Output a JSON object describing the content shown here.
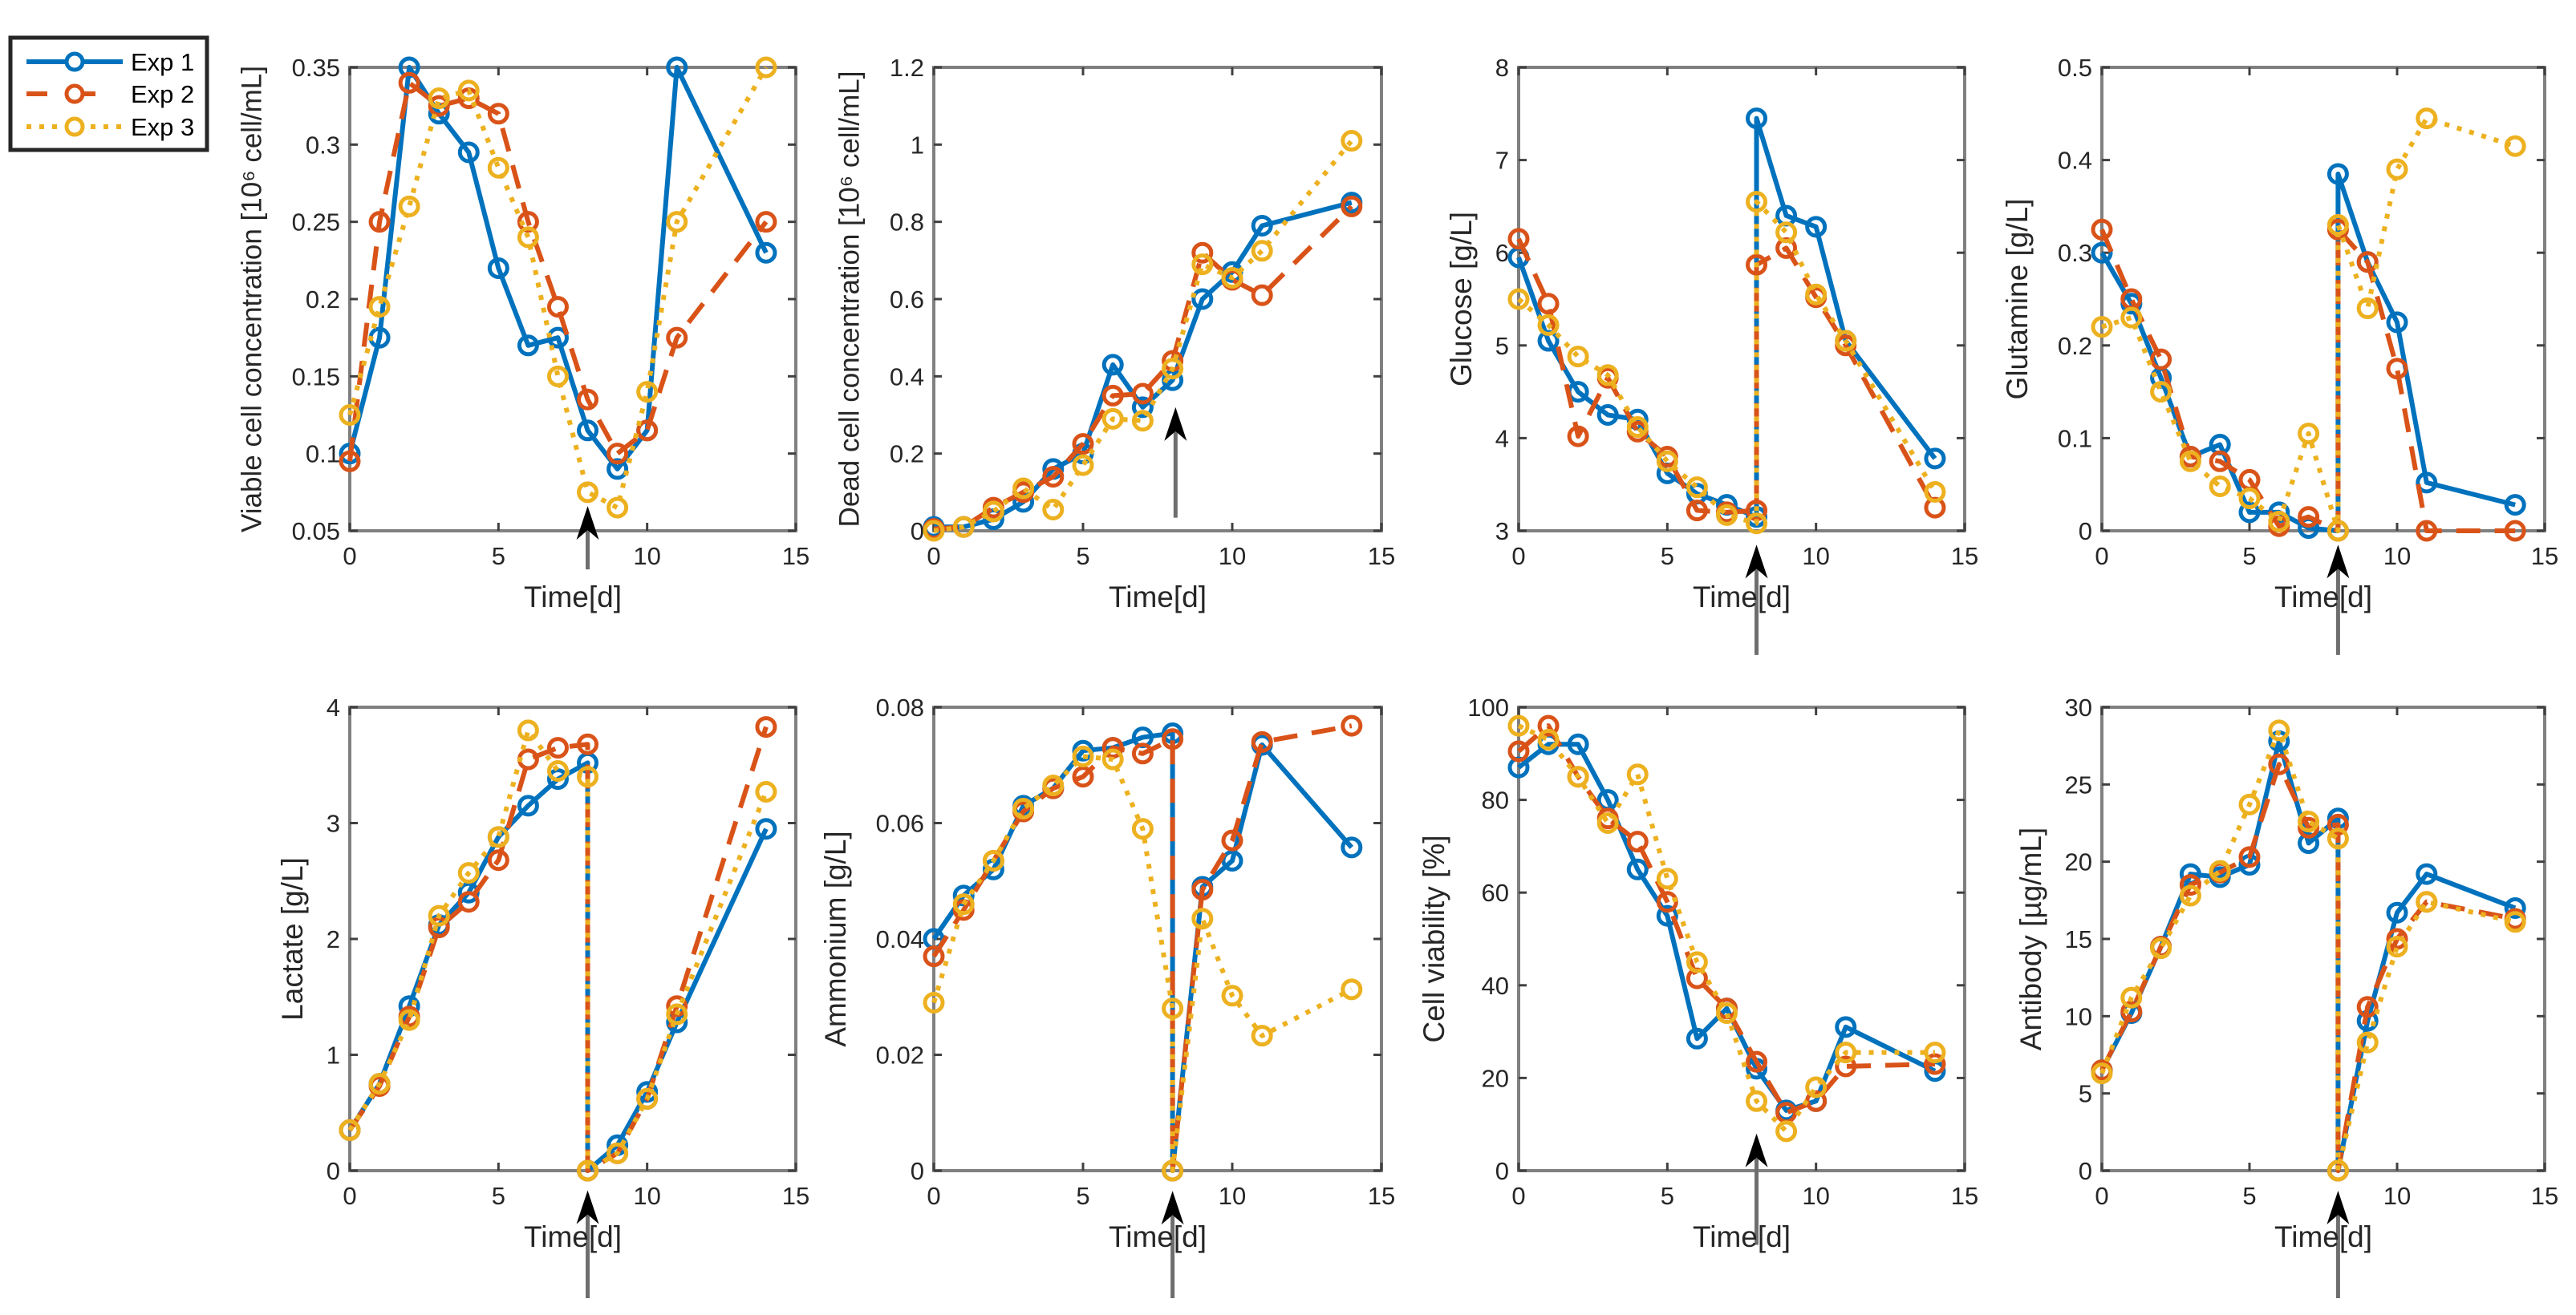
{
  "legend": {
    "entries": [
      {
        "name": "Exp 1",
        "color": "#0072BD",
        "style": "solid"
      },
      {
        "name": "Exp 2",
        "color": "#D95319",
        "style": "dashed"
      },
      {
        "name": "Exp 3",
        "color": "#EDB120",
        "style": "dotted"
      }
    ],
    "placement": "top-left"
  },
  "chart_data": [
    {
      "type": "line",
      "ylabel": "Viable cell concentration [10⁶ cell/mL]",
      "xlabel": "Time[d]",
      "xlim": [
        0,
        15
      ],
      "ylim": [
        0.05,
        0.35
      ],
      "xticks": [
        0,
        5,
        10,
        15
      ],
      "yticks": [
        0.05,
        0.1,
        0.15,
        0.2,
        0.25,
        0.3,
        0.35
      ],
      "x": [
        0,
        1,
        2,
        3,
        4,
        5,
        6,
        7,
        8,
        9,
        10,
        11,
        14
      ],
      "series": [
        {
          "name": "Exp 1",
          "values": [
            0.1,
            0.175,
            0.35,
            0.32,
            0.295,
            0.22,
            0.17,
            0.175,
            0.115,
            0.09,
            0.115,
            0.35,
            0.23
          ]
        },
        {
          "name": "Exp 2",
          "values": [
            0.095,
            0.25,
            0.34,
            0.325,
            0.33,
            0.32,
            0.25,
            0.195,
            0.135,
            0.1,
            0.115,
            0.175,
            0.25
          ]
        },
        {
          "name": "Exp 3",
          "values": [
            0.125,
            0.195,
            0.26,
            0.33,
            0.335,
            0.285,
            0.24,
            0.15,
            0.075,
            0.065,
            0.14,
            0.25,
            0.35
          ]
        }
      ],
      "arrow": {
        "x": 8,
        "tip_y": 0.066,
        "tail_y": 0.025
      }
    },
    {
      "type": "line",
      "ylabel": "Dead cell concentration [10⁶ cell/mL]",
      "xlabel": "Time[d]",
      "xlim": [
        0,
        15
      ],
      "ylim": [
        0,
        1.2
      ],
      "xticks": [
        0,
        5,
        10,
        15
      ],
      "yticks": [
        0,
        0.2,
        0.4,
        0.6,
        0.8,
        1,
        1.2
      ],
      "x": [
        0,
        1,
        2,
        3,
        4,
        5,
        6,
        7,
        8,
        9,
        10,
        11,
        14
      ],
      "series": [
        {
          "name": "Exp 1",
          "values": [
            0.01,
            0.01,
            0.03,
            0.075,
            0.16,
            0.2,
            0.43,
            0.32,
            0.39,
            0.6,
            0.67,
            0.79,
            0.85
          ]
        },
        {
          "name": "Exp 2",
          "values": [
            0.005,
            0.01,
            0.06,
            0.1,
            0.14,
            0.225,
            0.35,
            0.355,
            0.44,
            0.72,
            0.65,
            0.61,
            0.84
          ]
        },
        {
          "name": "Exp 3",
          "values": [
            0.0,
            0.01,
            0.05,
            0.11,
            0.055,
            0.17,
            0.29,
            0.285,
            0.42,
            0.69,
            0.655,
            0.725,
            1.01
          ]
        }
      ],
      "arrow": {
        "x": 8.1,
        "tip_y": 0.32,
        "tail_y": 0.034
      }
    },
    {
      "type": "line",
      "ylabel": "Glucose [g/L]",
      "xlabel": "Time[d]",
      "xlim": [
        0,
        15
      ],
      "ylim": [
        3,
        8
      ],
      "xticks": [
        0,
        5,
        10,
        15
      ],
      "yticks": [
        3,
        4,
        5,
        6,
        7,
        8
      ],
      "x": [
        0,
        1,
        2,
        3,
        4,
        5,
        6,
        7,
        8,
        8,
        9,
        10,
        11,
        14
      ],
      "series": [
        {
          "name": "Exp 1",
          "values": [
            5.95,
            5.05,
            4.5,
            4.25,
            4.2,
            3.62,
            3.4,
            3.28,
            3.15,
            7.45,
            6.4,
            6.28,
            5.05,
            3.78
          ]
        },
        {
          "name": "Exp 2",
          "values": [
            6.15,
            5.45,
            4.02,
            4.65,
            4.07,
            3.8,
            3.22,
            3.2,
            3.22,
            5.87,
            6.05,
            5.52,
            5.0,
            3.25
          ]
        },
        {
          "name": "Exp 3",
          "values": [
            5.5,
            5.22,
            4.88,
            4.68,
            4.12,
            3.75,
            3.47,
            3.17,
            3.08,
            6.55,
            6.22,
            5.55,
            5.05,
            3.42
          ]
        }
      ],
      "arrow": {
        "x": 8,
        "tip_y": 2.85,
        "tail_y": 1.66
      }
    },
    {
      "type": "line",
      "ylabel": "Glutamine [g/L]",
      "xlabel": "Time[d]",
      "xlim": [
        0,
        15
      ],
      "ylim": [
        0,
        0.5
      ],
      "xticks": [
        0,
        5,
        10,
        15
      ],
      "yticks": [
        0,
        0.1,
        0.2,
        0.3,
        0.4,
        0.5
      ],
      "x": [
        0,
        1,
        2,
        3,
        4,
        5,
        6,
        7,
        8,
        8,
        9,
        10,
        11,
        14
      ],
      "series": [
        {
          "name": "Exp 1",
          "values": [
            0.3,
            0.245,
            0.165,
            0.08,
            0.093,
            0.02,
            0.02,
            0.003,
            0.0,
            0.385,
            0.29,
            0.225,
            0.052,
            0.028
          ]
        },
        {
          "name": "Exp 2",
          "values": [
            0.325,
            0.25,
            0.185,
            0.08,
            0.075,
            0.055,
            0.005,
            0.015,
            0.0,
            0.325,
            0.29,
            0.175,
            0.0,
            0.0
          ]
        },
        {
          "name": "Exp 3",
          "values": [
            0.22,
            0.23,
            0.15,
            0.075,
            0.048,
            0.035,
            0.01,
            0.105,
            0.0,
            0.33,
            0.24,
            0.39,
            0.445,
            0.415
          ]
        }
      ],
      "arrow": {
        "x": 8,
        "tip_y": -0.015,
        "tail_y": -0.134
      }
    },
    {
      "type": "line",
      "ylabel": "Lactate [g/L]",
      "xlabel": "Time[d]",
      "xlim": [
        0,
        15
      ],
      "ylim": [
        0,
        4
      ],
      "xticks": [
        0,
        5,
        10,
        15
      ],
      "yticks": [
        0,
        1,
        2,
        3,
        4
      ],
      "x": [
        0,
        1,
        2,
        3,
        4,
        5,
        6,
        7,
        8,
        8,
        9,
        10,
        11,
        14
      ],
      "series": [
        {
          "name": "Exp 1",
          "values": [
            0.35,
            0.75,
            1.42,
            2.12,
            2.4,
            2.88,
            3.15,
            3.38,
            3.52,
            0.0,
            0.22,
            0.68,
            1.28,
            2.95
          ]
        },
        {
          "name": "Exp 2",
          "values": [
            0.35,
            0.73,
            1.33,
            2.1,
            2.32,
            2.68,
            3.55,
            3.65,
            3.68,
            0.0,
            0.15,
            0.62,
            1.42,
            3.83
          ]
        },
        {
          "name": "Exp 3",
          "values": [
            0.35,
            0.75,
            1.3,
            2.2,
            2.57,
            2.88,
            3.8,
            3.45,
            3.4,
            0.0,
            0.15,
            0.62,
            1.35,
            3.27
          ]
        }
      ],
      "arrow": {
        "x": 8,
        "tip_y": -0.17,
        "tail_y": -1.1
      }
    },
    {
      "type": "line",
      "ylabel": "Ammonium [g/L]",
      "xlabel": "Time[d]",
      "xlim": [
        0,
        15
      ],
      "ylim": [
        0,
        0.08
      ],
      "xticks": [
        0,
        5,
        10,
        15
      ],
      "yticks": [
        0,
        0.02,
        0.04,
        0.06,
        0.08
      ],
      "x": [
        0,
        1,
        2,
        3,
        4,
        5,
        6,
        7,
        8,
        8,
        9,
        10,
        11,
        14
      ],
      "series": [
        {
          "name": "Exp 1",
          "values": [
            0.04,
            0.0475,
            0.052,
            0.063,
            0.066,
            0.0725,
            0.073,
            0.0748,
            0.0755,
            0.0,
            0.049,
            0.0535,
            0.0735,
            0.0558
          ]
        },
        {
          "name": "Exp 2",
          "values": [
            0.037,
            0.045,
            0.0535,
            0.062,
            0.066,
            0.068,
            0.073,
            0.072,
            0.0745,
            0.0,
            0.0485,
            0.057,
            0.074,
            0.0768
          ]
        },
        {
          "name": "Exp 3",
          "values": [
            0.029,
            0.046,
            0.0535,
            0.0625,
            0.0665,
            0.0715,
            0.071,
            0.059,
            0.028,
            0.0,
            0.0435,
            0.0302,
            0.0233,
            0.0313
          ]
        }
      ],
      "arrow": {
        "x": 8,
        "tip_y": -0.0035,
        "tail_y": -0.022
      }
    },
    {
      "type": "line",
      "ylabel": "Cell viability [%]",
      "xlabel": "Time[d]",
      "xlim": [
        0,
        15
      ],
      "ylim": [
        0,
        100
      ],
      "xticks": [
        0,
        5,
        10,
        15
      ],
      "yticks": [
        0,
        20,
        40,
        60,
        80,
        100
      ],
      "x": [
        0,
        1,
        2,
        3,
        4,
        5,
        6,
        7,
        8,
        9,
        10,
        11,
        14
      ],
      "series": [
        {
          "name": "Exp 1",
          "values": [
            87,
            92,
            92,
            80,
            65,
            55,
            28.5,
            35,
            22,
            13,
            15,
            31,
            21.5
          ]
        },
        {
          "name": "Exp 2",
          "values": [
            90.5,
            96,
            85,
            76,
            71,
            58,
            41.5,
            35,
            23.5,
            12.5,
            15,
            22.5,
            23
          ]
        },
        {
          "name": "Exp 3",
          "values": [
            96,
            93,
            85,
            75,
            85.5,
            63,
            45,
            34,
            15,
            8.5,
            18,
            25.5,
            25.5
          ]
        }
      ],
      "arrow": {
        "x": 8,
        "tip_y": 8,
        "tail_y": -16
      }
    },
    {
      "type": "line",
      "ylabel": "Antibody [µg/mL]",
      "xlabel": "Time[d]",
      "xlim": [
        0,
        15
      ],
      "ylim": [
        0,
        30
      ],
      "xticks": [
        0,
        5,
        10,
        15
      ],
      "yticks": [
        0,
        5,
        10,
        15,
        20,
        25,
        30
      ],
      "x": [
        0,
        1,
        2,
        3,
        4,
        5,
        6,
        7,
        8,
        8,
        9,
        10,
        11,
        14
      ],
      "series": [
        {
          "name": "Exp 1",
          "values": [
            6.5,
            10.2,
            14.5,
            19.2,
            19.0,
            19.8,
            27.8,
            21.2,
            22.8,
            0.0,
            9.7,
            16.7,
            19.2,
            17.0
          ]
        },
        {
          "name": "Exp 2",
          "values": [
            6.5,
            10.3,
            14.5,
            18.5,
            19.3,
            20.3,
            26.3,
            22.2,
            22.4,
            0.0,
            10.6,
            15.0,
            17.4,
            16.3
          ]
        },
        {
          "name": "Exp 3",
          "values": [
            6.3,
            11.2,
            14.4,
            17.8,
            19.4,
            23.7,
            28.5,
            22.6,
            21.5,
            0.0,
            8.3,
            14.5,
            17.4,
            16.1
          ]
        }
      ],
      "arrow": {
        "x": 8,
        "tip_y": -1.3,
        "tail_y": -8.25
      }
    }
  ]
}
